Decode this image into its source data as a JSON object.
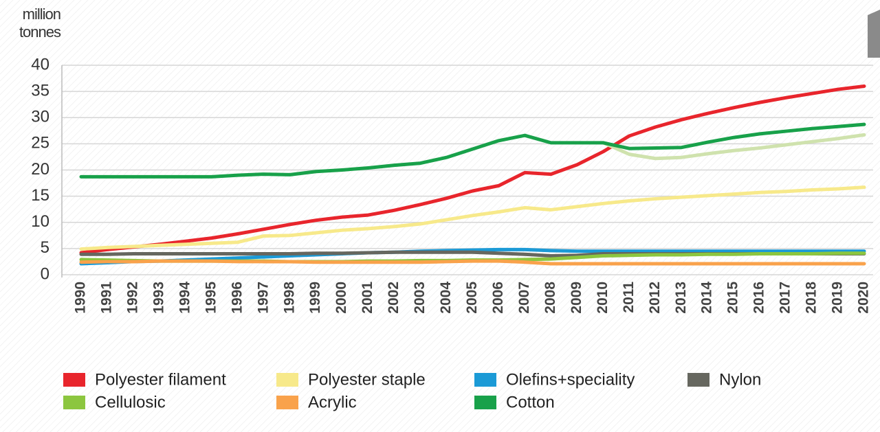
{
  "chart_data": {
    "type": "line",
    "y_axis_label": [
      "million",
      "tonnes"
    ],
    "categories": [
      "1990",
      "1991",
      "1992",
      "1993",
      "1994",
      "1995",
      "1996",
      "1997",
      "1998",
      "1999",
      "2000",
      "2001",
      "2002",
      "2003",
      "2004",
      "2005",
      "2006",
      "2007",
      "2008",
      "2009",
      "2010",
      "2011",
      "2012",
      "2013",
      "2014",
      "2015",
      "2016",
      "2017",
      "2018",
      "2019",
      "2020"
    ],
    "ylim": [
      0,
      40
    ],
    "yticks": [
      0,
      5,
      10,
      15,
      20,
      25,
      30,
      35,
      40
    ],
    "grid": true,
    "legend": "bottom",
    "series": [
      {
        "name": "Polyester filament",
        "color": "#e8252c",
        "values": [
          4.2,
          4.8,
          5.3,
          5.8,
          6.4,
          7.0,
          7.8,
          8.7,
          9.6,
          10.4,
          11.0,
          11.4,
          12.3,
          13.4,
          14.6,
          16.0,
          17.0,
          19.5,
          19.2,
          21.0,
          23.5,
          26.5,
          28.2,
          29.6,
          30.8,
          31.9,
          32.9,
          33.8,
          34.6,
          35.4,
          36.0
        ]
      },
      {
        "name": "Polyester staple",
        "color": "#f7e98a",
        "values": [
          4.9,
          5.2,
          5.4,
          5.6,
          5.8,
          6.0,
          6.2,
          7.4,
          7.5,
          8.0,
          8.5,
          8.8,
          9.2,
          9.7,
          10.5,
          11.3,
          12.0,
          12.8,
          12.4,
          13.0,
          13.6,
          14.1,
          14.5,
          14.8,
          15.1,
          15.4,
          15.7,
          15.9,
          16.2,
          16.4,
          16.7
        ]
      },
      {
        "name": "Olefins+speciality",
        "color": "#1b9ad6",
        "values": [
          2.1,
          2.3,
          2.5,
          2.6,
          2.8,
          3.0,
          3.2,
          3.4,
          3.6,
          3.8,
          4.0,
          4.2,
          4.3,
          4.5,
          4.6,
          4.7,
          4.8,
          4.8,
          4.6,
          4.5,
          4.5,
          4.5,
          4.5,
          4.5,
          4.5,
          4.5,
          4.5,
          4.5,
          4.5,
          4.5,
          4.5
        ]
      },
      {
        "name": "Nylon",
        "color": "#66675f",
        "values": [
          3.9,
          3.9,
          4.0,
          4.0,
          4.0,
          4.0,
          4.0,
          4.0,
          4.0,
          4.1,
          4.1,
          4.2,
          4.3,
          4.3,
          4.3,
          4.3,
          4.1,
          3.9,
          3.6,
          3.7,
          4.0,
          4.0,
          4.0,
          4.0,
          4.0,
          4.0,
          4.0,
          4.0,
          4.0,
          4.0,
          4.0
        ]
      },
      {
        "name": "Cellulosic",
        "color": "#8cc63f",
        "values": [
          2.9,
          2.8,
          2.7,
          2.6,
          2.6,
          2.6,
          2.6,
          2.6,
          2.5,
          2.5,
          2.5,
          2.6,
          2.6,
          2.7,
          2.7,
          2.8,
          2.8,
          2.9,
          3.0,
          3.3,
          3.6,
          3.7,
          3.8,
          3.8,
          3.9,
          3.9,
          4.0,
          4.0,
          4.0,
          4.1,
          4.1
        ]
      },
      {
        "name": "Acrylic",
        "color": "#f9a24b",
        "values": [
          2.4,
          2.5,
          2.5,
          2.6,
          2.6,
          2.6,
          2.5,
          2.5,
          2.5,
          2.4,
          2.4,
          2.4,
          2.4,
          2.4,
          2.5,
          2.6,
          2.6,
          2.4,
          2.1,
          2.1,
          2.1,
          2.1,
          2.1,
          2.1,
          2.1,
          2.1,
          2.1,
          2.1,
          2.1,
          2.1,
          2.1
        ]
      },
      {
        "color": "#cfe2ad",
        "values": [
          null,
          null,
          null,
          null,
          null,
          null,
          null,
          null,
          null,
          null,
          null,
          null,
          null,
          null,
          null,
          null,
          null,
          null,
          null,
          null,
          25.2,
          23.0,
          22.2,
          22.4,
          23.1,
          23.7,
          24.2,
          24.8,
          25.4,
          26.0,
          26.7
        ]
      },
      {
        "name": "Cotton",
        "color": "#18a14a",
        "values": [
          18.7,
          18.7,
          18.7,
          18.7,
          18.7,
          18.7,
          19.0,
          19.2,
          19.1,
          19.7,
          20.0,
          20.4,
          20.9,
          21.3,
          22.4,
          24.0,
          25.6,
          26.6,
          25.2,
          25.2,
          25.2,
          24.1,
          24.2,
          24.3,
          25.3,
          26.2,
          26.9,
          27.4,
          27.9,
          28.3,
          28.7
        ]
      }
    ]
  }
}
